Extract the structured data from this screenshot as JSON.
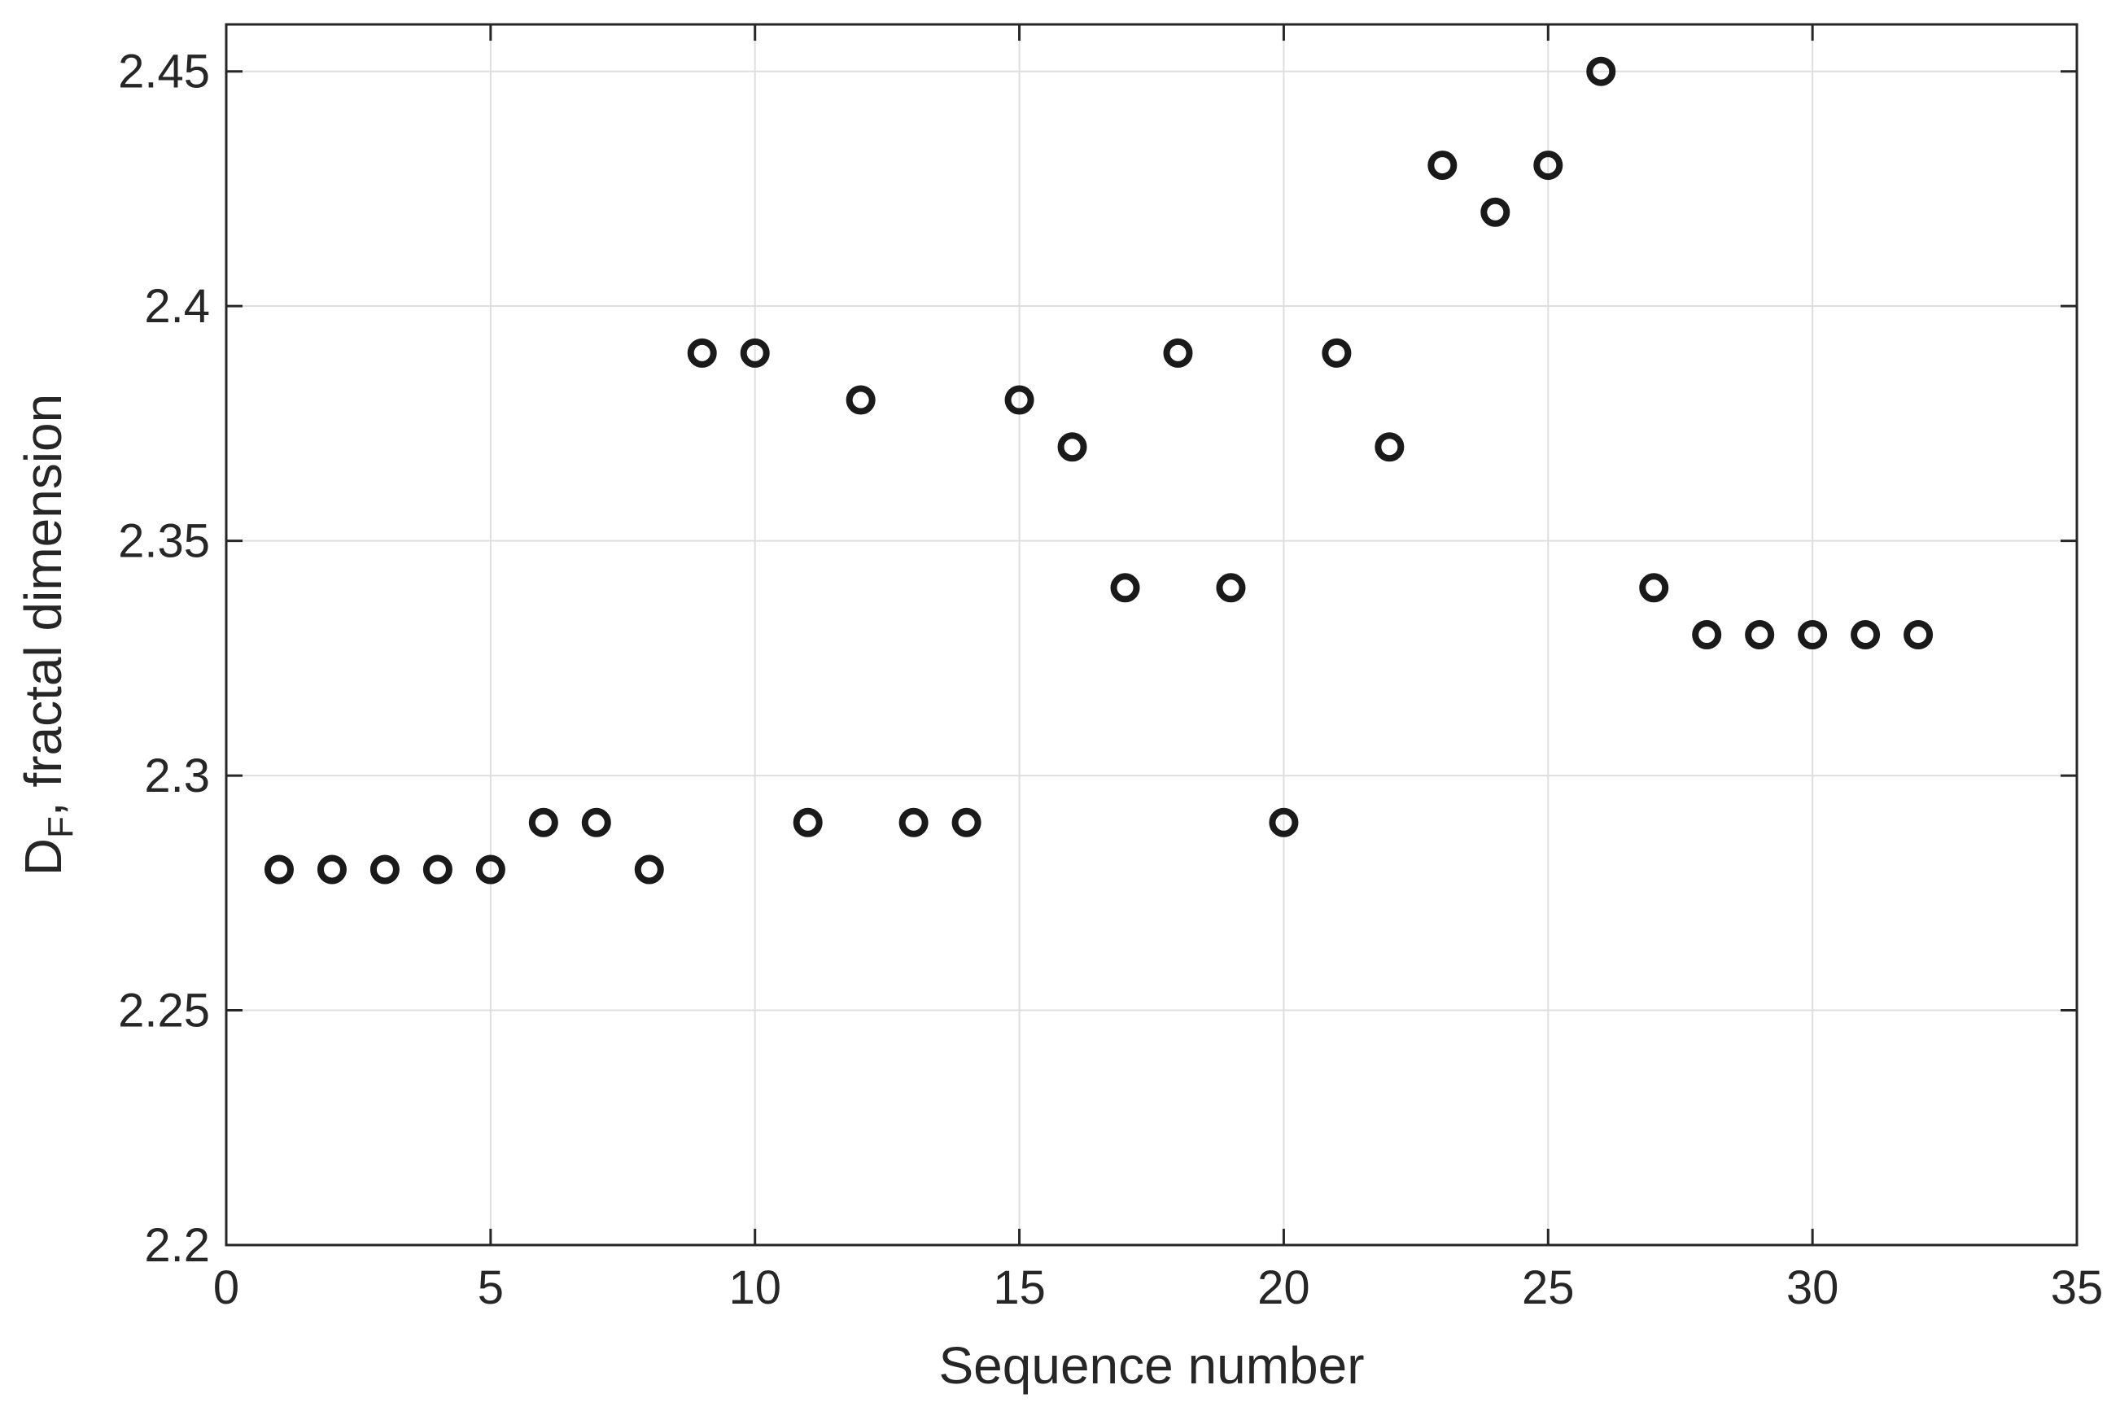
{
  "chart_data": {
    "type": "scatter",
    "title": "",
    "xlabel": "Sequence number",
    "ylabel": {
      "main": "D",
      "sub": "F",
      "rest": ", fractal dimension"
    },
    "xlim": [
      0,
      35
    ],
    "ylim": [
      2.2,
      2.46
    ],
    "grid": true,
    "x_ticks": [
      0,
      5,
      10,
      15,
      20,
      25,
      30,
      35
    ],
    "x_tick_labels": [
      "0",
      "5",
      "10",
      "15",
      "20",
      "25",
      "30",
      "35"
    ],
    "y_ticks": [
      2.2,
      2.25,
      2.3,
      2.35,
      2.4,
      2.45
    ],
    "y_tick_labels": [
      "2.2",
      "2.25",
      "2.3",
      "2.35",
      "2.4",
      "2.45"
    ],
    "marker": "open-circle",
    "marker_color": "#1a1a1a",
    "series": [
      {
        "x": [
          1,
          2,
          3,
          4,
          5,
          6,
          7,
          8,
          9,
          10,
          11,
          12,
          13,
          14,
          15,
          16,
          17,
          18,
          19,
          20,
          21,
          22,
          23,
          24,
          25,
          26,
          27,
          28,
          29,
          30,
          31,
          32
        ],
        "y": [
          2.28,
          2.28,
          2.28,
          2.28,
          2.28,
          2.29,
          2.29,
          2.28,
          2.39,
          2.39,
          2.29,
          2.38,
          2.29,
          2.29,
          2.38,
          2.37,
          2.34,
          2.39,
          2.34,
          2.29,
          2.39,
          2.37,
          2.43,
          2.42,
          2.43,
          2.45,
          2.34,
          2.33,
          2.33,
          2.33,
          2.33,
          2.33
        ]
      }
    ]
  }
}
